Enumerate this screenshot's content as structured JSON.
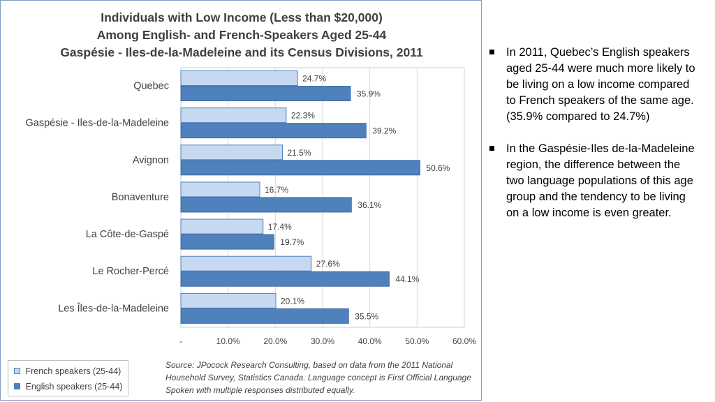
{
  "chart_data": {
    "type": "bar",
    "orientation": "horizontal",
    "title_lines": [
      "Individuals with Low Income (Less than $20,000)",
      "Among English- and French-Speakers Aged 25-44",
      "Gaspésie - Iles-de-la-Madeleine and its Census Divisions, 2011"
    ],
    "categories": [
      "Quebec",
      "Gaspésie - Iles-de-la-Madeleine",
      "Avignon",
      "Bonaventure",
      "La Côte-de-Gaspé",
      "Le Rocher-Percé",
      "Les Îles-de-la-Madeleine"
    ],
    "series": [
      {
        "name": "French speakers (25-44)",
        "color": "#c6d9f1",
        "values": [
          24.7,
          22.3,
          21.5,
          16.7,
          17.4,
          27.6,
          20.1
        ],
        "labels": [
          "24.7%",
          "22.3%",
          "21.5%",
          "16.7%",
          "17.4%",
          "27.6%",
          "20.1%"
        ]
      },
      {
        "name": "English speakers (25-44)",
        "color": "#4f81bd",
        "values": [
          35.9,
          39.2,
          50.6,
          36.1,
          19.7,
          44.1,
          35.5
        ],
        "labels": [
          "35.9%",
          "39.2%",
          "50.6%",
          "36.1%",
          "19.7%",
          "44.1%",
          "35.5%"
        ]
      }
    ],
    "x_ticks": [
      0,
      10,
      20,
      30,
      40,
      50,
      60
    ],
    "x_tick_labels": [
      "-",
      "10.0%",
      "20.0%",
      "30.0%",
      "40.0%",
      "50.0%",
      "60.0%"
    ],
    "xlim": [
      0,
      60
    ],
    "grid": "vertical",
    "legend_position": "bottom-left"
  },
  "legend": {
    "french_label": "French speakers (25-44)",
    "english_label": "English speakers (25-44)"
  },
  "source_note": "Source: JPocock Research Consulting, based on data from the 2011 National Household Survey, Statistics Canada. Language concept is First Official Language Spoken with multiple responses distributed equally.",
  "bullets": [
    "In 2011, Quebec’s English speakers aged 25-44 were much more likely to be living on a low income compared to French speakers of the same age. (35.9% compared to 24.7%)",
    "In the Gaspésie-Iles de-la-Madeleine region, the difference between the two language populations of this age group and the tendency to be living on a low income is even greater."
  ],
  "colors": {
    "french": "#c6d9f1",
    "english": "#4f81bd",
    "bar_border": "#4f81bd",
    "text": "#404040"
  }
}
